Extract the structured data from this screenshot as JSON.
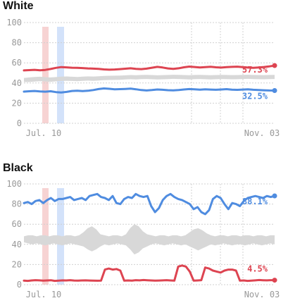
{
  "colors": {
    "red": "#dd4451",
    "blue": "#4f8ce0",
    "band": "#d8d8d8",
    "event_red": "#f7d3d3",
    "event_blue": "#d3e2fa",
    "grid": "#d0d0d0"
  },
  "chart_data": [
    {
      "type": "line",
      "title": "White",
      "ylim": [
        0,
        100
      ],
      "y_ticks": [
        "0",
        "20",
        "40",
        "60",
        "80",
        "100"
      ],
      "x_ticks": [
        "Jul. 10",
        "Nov. 03"
      ],
      "grid": true,
      "series": [
        {
          "color": "red",
          "end_label": "57.3%",
          "values": [
            52.5,
            52.8,
            53.1,
            52.6,
            53.0,
            53.9,
            55.0,
            55.8,
            55.5,
            55.2,
            55.0,
            54.8,
            54.5,
            54.3,
            54.0,
            53.5,
            53.2,
            53.4,
            53.8,
            54.2,
            54.6,
            54.0,
            53.8,
            54.3,
            55.2,
            56.0,
            55.4,
            54.5,
            54.0,
            54.6,
            55.6,
            56.3,
            55.9,
            55.4,
            55.8,
            56.1,
            55.6,
            55.3,
            55.7,
            56.0,
            56.2,
            55.8,
            55.3,
            55.0,
            55.4,
            55.9,
            56.5,
            57.3
          ]
        },
        {
          "color": "blue",
          "end_label": "32.5%",
          "values": [
            31.5,
            31.8,
            32.1,
            31.7,
            31.4,
            31.8,
            31.0,
            30.6,
            31.2,
            32.1,
            32.4,
            32.0,
            32.3,
            33.0,
            34.0,
            34.6,
            34.3,
            33.8,
            33.9,
            34.1,
            34.4,
            33.8,
            33.0,
            32.6,
            33.0,
            33.6,
            33.3,
            32.9,
            32.7,
            33.0,
            33.6,
            34.0,
            33.7,
            33.4,
            33.8,
            33.5,
            33.3,
            33.6,
            33.9,
            33.4,
            33.2,
            33.5,
            33.8,
            33.3,
            33.0,
            32.8,
            32.6,
            32.5
          ]
        }
      ],
      "band": {
        "lower": [
          41,
          41,
          41.5,
          41.8,
          41.5,
          41.2,
          41.6,
          42,
          42.2,
          42,
          41.8,
          42.1,
          42.4,
          42.2,
          42.5,
          42.8,
          43,
          43.1,
          43.2,
          43.5,
          43.8,
          43.6,
          43.9,
          44,
          43.8,
          43.5,
          43.7,
          43.9,
          44.1,
          44,
          43.8,
          43.6,
          43.9,
          44,
          43.8,
          43.6,
          43.8,
          44,
          43.9,
          43.7,
          43.8,
          44,
          44.1,
          43.9,
          43.8,
          43.7,
          43.9,
          44
        ],
        "upper": [
          45,
          45.5,
          46,
          46.2,
          45.8,
          45.5,
          45.9,
          46.3,
          46.5,
          46.2,
          46,
          46.3,
          46.6,
          46.4,
          46.7,
          47,
          47.2,
          47.3,
          47.4,
          47.6,
          47.9,
          47.7,
          48,
          48.1,
          47.9,
          47.6,
          47.8,
          48,
          48.2,
          48.1,
          47.9,
          47.7,
          48,
          48.1,
          47.9,
          47.7,
          47.9,
          48.1,
          48,
          47.8,
          47.9,
          48.1,
          48.2,
          48,
          47.9,
          47.8,
          48,
          48.1
        ]
      }
    },
    {
      "type": "line",
      "title": "Black",
      "ylim": [
        0,
        100
      ],
      "y_ticks": [
        "0",
        "20",
        "40",
        "60",
        "80",
        "100"
      ],
      "x_ticks": [
        "Jul. 10",
        "Nov. 03"
      ],
      "grid": true,
      "series": [
        {
          "color": "blue",
          "end_label": "88.1%",
          "values": [
            81,
            82,
            80,
            83,
            84,
            81,
            84,
            86,
            83,
            85,
            85,
            86,
            87,
            84,
            85,
            86,
            84,
            88,
            89,
            90,
            87,
            86,
            84,
            88,
            81,
            80,
            85,
            87,
            86,
            90,
            88,
            87,
            88,
            78,
            72,
            76,
            84,
            88,
            90,
            87,
            85,
            84,
            82,
            80,
            75,
            77,
            72,
            70,
            74,
            85,
            88,
            86,
            80,
            75,
            81,
            80,
            78,
            83,
            86,
            87,
            88,
            87,
            86,
            88,
            87,
            88.1
          ]
        },
        {
          "color": "red",
          "end_label": "4.5%",
          "values": [
            4,
            3.8,
            4.2,
            4.5,
            4.3,
            4,
            4.2,
            4.4,
            3.8,
            4,
            4.3,
            4.2,
            4.5,
            4.1,
            4,
            4.2,
            4.3,
            4.1,
            4,
            3.9,
            4,
            15,
            16,
            15,
            15.5,
            14,
            4,
            4.2,
            4,
            4.5,
            4.3,
            4.6,
            4.4,
            4.2,
            4,
            4.1,
            4.3,
            4.5,
            4.2,
            4,
            18,
            19,
            18,
            13,
            4,
            4.2,
            4.5,
            17,
            16,
            14,
            13,
            12,
            14,
            15,
            15,
            14,
            4,
            4.2,
            3.8,
            4,
            4.3,
            4.6,
            4.4,
            4.3,
            4.5,
            4.5
          ]
        }
      ],
      "band": {
        "lower": [
          42,
          41,
          40,
          41,
          40,
          39,
          40,
          41,
          40,
          39,
          40,
          41,
          40,
          39,
          38,
          35,
          33,
          35,
          38,
          40,
          39,
          40,
          41,
          40,
          39,
          35,
          30,
          32,
          36,
          38,
          40,
          41,
          40,
          39,
          40,
          41,
          40,
          39,
          40,
          38,
          36,
          34,
          36,
          38,
          40,
          39,
          40,
          41,
          40,
          39,
          40,
          40,
          39,
          40,
          41,
          40,
          39,
          40,
          41,
          40
        ],
        "upper": [
          48,
          49,
          49,
          48,
          49,
          49,
          48,
          49,
          49,
          48,
          49,
          49,
          48,
          49,
          52,
          56,
          58,
          55,
          50,
          49,
          48,
          49,
          49,
          48,
          50,
          56,
          60,
          58,
          53,
          50,
          49,
          48,
          49,
          49,
          48,
          49,
          49,
          48,
          49,
          52,
          55,
          56,
          54,
          51,
          49,
          48,
          49,
          49,
          48,
          49,
          49,
          48,
          49,
          49,
          48,
          49,
          49,
          48,
          49,
          49
        ]
      }
    }
  ]
}
